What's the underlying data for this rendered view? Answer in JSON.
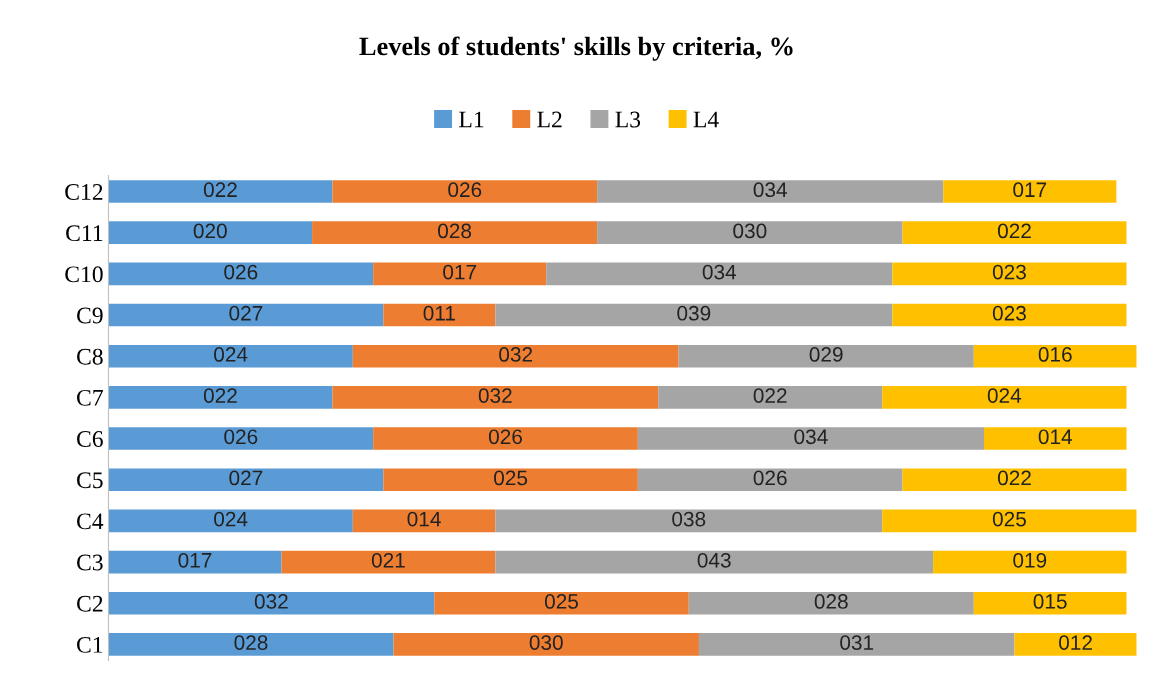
{
  "chart_data": {
    "type": "bar",
    "orientation": "horizontal",
    "stacked": true,
    "title": "Levels of students' skills by criteria, %",
    "categories": [
      "C12",
      "C11",
      "C10",
      "C9",
      "C8",
      "C7",
      "C6",
      "C5",
      "C4",
      "C3",
      "C2",
      "C1"
    ],
    "series": [
      {
        "name": "L1",
        "color": "#5b9bd5",
        "values": [
          22,
          20,
          26,
          27,
          24,
          22,
          26,
          27,
          24,
          17,
          32,
          28
        ],
        "value_labels": [
          "022",
          "020",
          "026",
          "027",
          "024",
          "022",
          "026",
          "027",
          "024",
          "017",
          "032",
          "028"
        ]
      },
      {
        "name": "L2",
        "color": "#ed7d31",
        "values": [
          26,
          28,
          17,
          11,
          32,
          32,
          26,
          25,
          14,
          21,
          25,
          30
        ],
        "value_labels": [
          "026",
          "028",
          "017",
          "011",
          "032",
          "032",
          "026",
          "025",
          "014",
          "021",
          "025",
          "030"
        ]
      },
      {
        "name": "L3",
        "color": "#a5a5a5",
        "values": [
          34,
          30,
          34,
          39,
          29,
          22,
          34,
          26,
          38,
          43,
          28,
          31
        ],
        "value_labels": [
          "034",
          "030",
          "034",
          "039",
          "029",
          "022",
          "034",
          "026",
          "038",
          "043",
          "028",
          "031"
        ]
      },
      {
        "name": "L4",
        "color": "#ffc000",
        "values": [
          17,
          22,
          23,
          23,
          16,
          24,
          14,
          22,
          25,
          19,
          15,
          12
        ],
        "value_labels": [
          "017",
          "022",
          "023",
          "023",
          "016",
          "024",
          "014",
          "022",
          "025",
          "019",
          "015",
          "012"
        ]
      }
    ],
    "legend": "top",
    "grid": false,
    "tick_labels": "y"
  }
}
